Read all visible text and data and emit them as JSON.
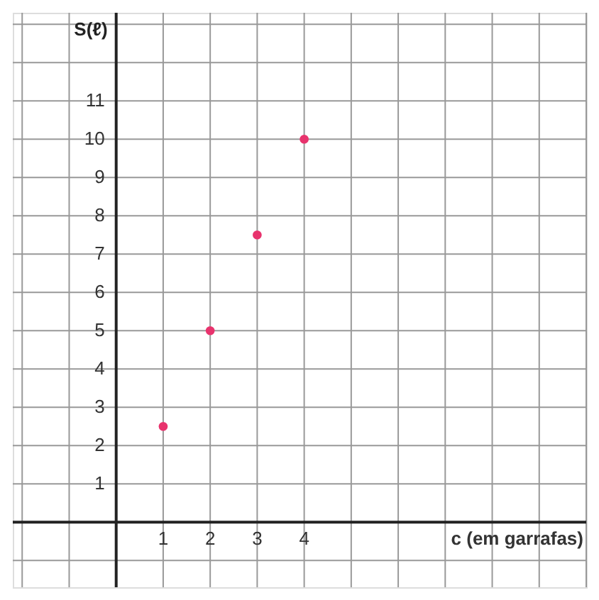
{
  "chart_data": {
    "type": "scatter",
    "xlabel": "c (em garrafas)",
    "ylabel": "S(ℓ)",
    "x": [
      1,
      2,
      3,
      4
    ],
    "series": [
      {
        "color": "#e8336d",
        "values": [
          2.5,
          5,
          7.5,
          10
        ]
      }
    ],
    "xlim": [
      -2.2,
      10
    ],
    "xticks": [
      {
        "value": -2,
        "label": null
      },
      {
        "value": -1,
        "label": null
      },
      1,
      2,
      3,
      4,
      {
        "value": 5,
        "label": null
      },
      {
        "value": 6,
        "label": null
      },
      {
        "value": 7,
        "label": null
      },
      {
        "value": 8,
        "label": null
      },
      {
        "value": 9,
        "label": null
      },
      {
        "value": 10,
        "label": null
      }
    ],
    "ylim": [
      -1.7,
      13.3
    ],
    "yticks": [
      {
        "value": -1,
        "label": null
      },
      1,
      2,
      3,
      4,
      5,
      6,
      7,
      8,
      9,
      10,
      11,
      {
        "value": 12,
        "label": null
      },
      {
        "value": 13,
        "label": null
      }
    ],
    "grid": true,
    "marker": "circle",
    "legend": false
  }
}
